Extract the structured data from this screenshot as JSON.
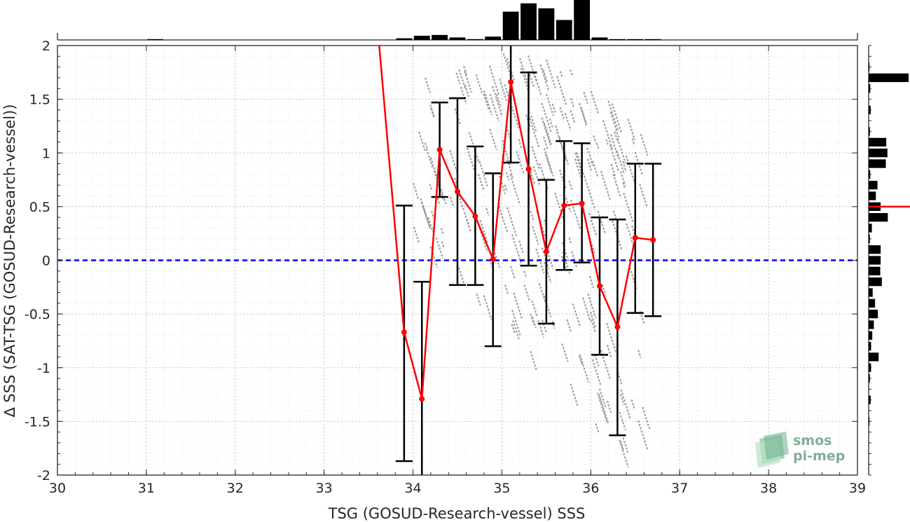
{
  "chart_data": {
    "type": "scatter",
    "xlabel": "TSG (GOSUD-Research-vessel) SSS",
    "ylabel": "∆ SSS (SAT-TSG (GOSUD-Research-vessel))",
    "xlim": [
      30,
      39
    ],
    "ylim": [
      -2,
      2
    ],
    "xticks": [
      "30",
      "31",
      "32",
      "33",
      "34",
      "35",
      "36",
      "37",
      "38",
      "39"
    ],
    "yticks": [
      "-2",
      "-1.5",
      "-1",
      "-0.5",
      "0",
      "0.5",
      "1",
      "1.5",
      "2"
    ],
    "grid": true,
    "zero_line": {
      "y": 0,
      "style": "dashed",
      "color": "#0000ff"
    },
    "series": [
      {
        "type": "line-errorbar",
        "color": "#ff0000",
        "x": [
          33.9,
          34.1,
          34.3,
          34.5,
          34.7,
          34.9,
          35.1,
          35.3,
          35.5,
          35.7,
          35.9,
          36.1,
          36.3,
          36.5,
          36.7
        ],
        "y": [
          -0.67,
          -1.29,
          1.03,
          0.64,
          0.41,
          0.01,
          1.66,
          0.85,
          0.08,
          0.51,
          0.53,
          -0.24,
          -0.62,
          0.21,
          0.19
        ],
        "err_low": [
          -1.87,
          -3.0,
          0.59,
          -0.23,
          -0.23,
          -0.8,
          0.91,
          -0.05,
          -0.59,
          -0.09,
          -0.02,
          -0.88,
          -1.63,
          -0.49,
          -0.52
        ],
        "err_high": [
          0.51,
          -0.2,
          1.47,
          1.51,
          1.06,
          0.81,
          2.5,
          1.75,
          0.75,
          1.11,
          1.09,
          0.4,
          0.38,
          0.9,
          0.9
        ],
        "lead_in": {
          "x": [
            33.62,
            33.9
          ],
          "y": [
            2.0,
            -0.67
          ]
        }
      }
    ],
    "top_histogram": {
      "x": [
        31.1,
        33.9,
        34.1,
        34.3,
        34.5,
        34.7,
        34.9,
        35.1,
        35.3,
        35.5,
        35.7,
        35.9,
        36.1,
        36.3,
        36.5,
        36.7
      ],
      "counts": [
        1,
        2,
        5,
        6,
        3,
        1,
        4,
        34,
        44,
        38,
        24,
        48,
        3,
        1,
        1,
        1
      ]
    },
    "right_histogram": {
      "y": [
        1.8,
        1.7,
        1.6,
        1.4,
        1.2,
        1.1,
        1.0,
        0.9,
        0.8,
        0.7,
        0.6,
        0.5,
        0.4,
        0.3,
        0.2,
        0.1,
        0.0,
        -0.1,
        -0.2,
        -0.3,
        -0.4,
        -0.5,
        -0.6,
        -0.7,
        -0.8,
        -0.9,
        -1.0,
        -1.1,
        -1.3,
        -1.5
      ],
      "counts": [
        2,
        100,
        4,
        5,
        3,
        44,
        47,
        43,
        4,
        22,
        18,
        30,
        48,
        8,
        3,
        30,
        30,
        29,
        33,
        10,
        16,
        23,
        13,
        9,
        6,
        25,
        6,
        3,
        5,
        2
      ],
      "mean_marker": {
        "y": 0.5,
        "color": "#ff0000"
      }
    }
  },
  "logo": {
    "line1": "smos",
    "line2": "pi-mep"
  }
}
